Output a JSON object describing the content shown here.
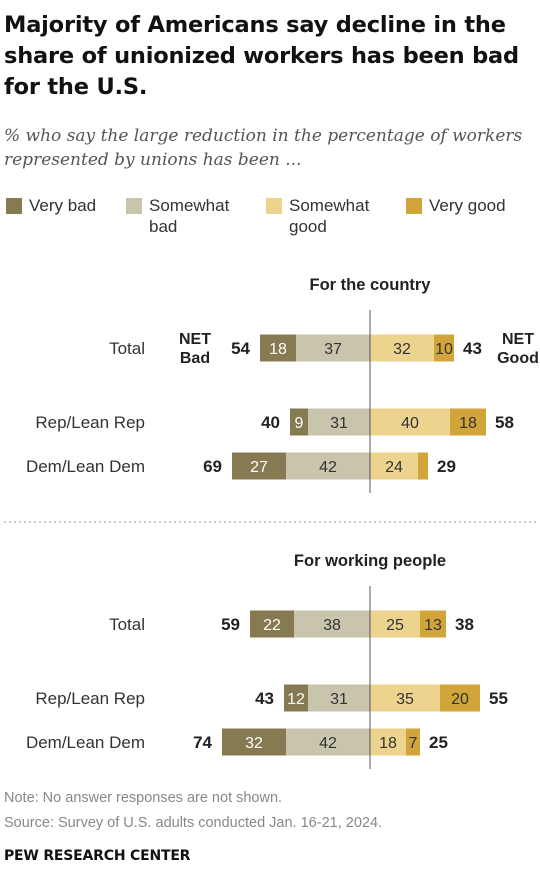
{
  "title": "Majority of Americans say decline in the share of unionized workers has been bad for the U.S.",
  "subtitle": "% who say the large reduction in the percentage of workers represented by unions has been ...",
  "legend": [
    {
      "label": "Very bad",
      "color": "#857a51"
    },
    {
      "label": "Somewhat\nbad",
      "color": "#c9c5ad"
    },
    {
      "label": "Somewhat\ngood",
      "color": "#ecd48e"
    },
    {
      "label": "Very good",
      "color": "#d1a539"
    }
  ],
  "net_labels": {
    "bad": "NET\nBad",
    "good": "NET\nGood"
  },
  "chart_data": {
    "type": "bar",
    "series_names": [
      "Very bad",
      "Somewhat bad",
      "Somewhat good",
      "Very good"
    ],
    "panels": [
      {
        "title": "For the country",
        "rows": [
          {
            "label": "Total",
            "very_bad": 18,
            "somewhat_bad": 37,
            "somewhat_good": 32,
            "very_good": 10,
            "net_bad": 54,
            "net_good": 43
          },
          {
            "label": "Rep/Lean Rep",
            "very_bad": 9,
            "somewhat_bad": 31,
            "somewhat_good": 40,
            "very_good": 18,
            "net_bad": 40,
            "net_good": 58
          },
          {
            "label": "Dem/Lean Dem",
            "very_bad": 27,
            "somewhat_bad": 42,
            "somewhat_good": 24,
            "very_good": 5,
            "net_bad": 69,
            "net_good": 29
          }
        ]
      },
      {
        "title": "For working people",
        "rows": [
          {
            "label": "Total",
            "very_bad": 22,
            "somewhat_bad": 38,
            "somewhat_good": 25,
            "very_good": 13,
            "net_bad": 59,
            "net_good": 38
          },
          {
            "label": "Rep/Lean Rep",
            "very_bad": 12,
            "somewhat_bad": 31,
            "somewhat_good": 35,
            "very_good": 20,
            "net_bad": 43,
            "net_good": 55
          },
          {
            "label": "Dem/Lean Dem",
            "very_bad": 32,
            "somewhat_bad": 42,
            "somewhat_good": 18,
            "very_good": 7,
            "net_bad": 74,
            "net_good": 25
          }
        ]
      }
    ]
  },
  "note": "Note: No answer responses are not shown.",
  "source": "Source: Survey of U.S. adults conducted Jan. 16-21, 2024.",
  "brand": "PEW RESEARCH CENTER"
}
